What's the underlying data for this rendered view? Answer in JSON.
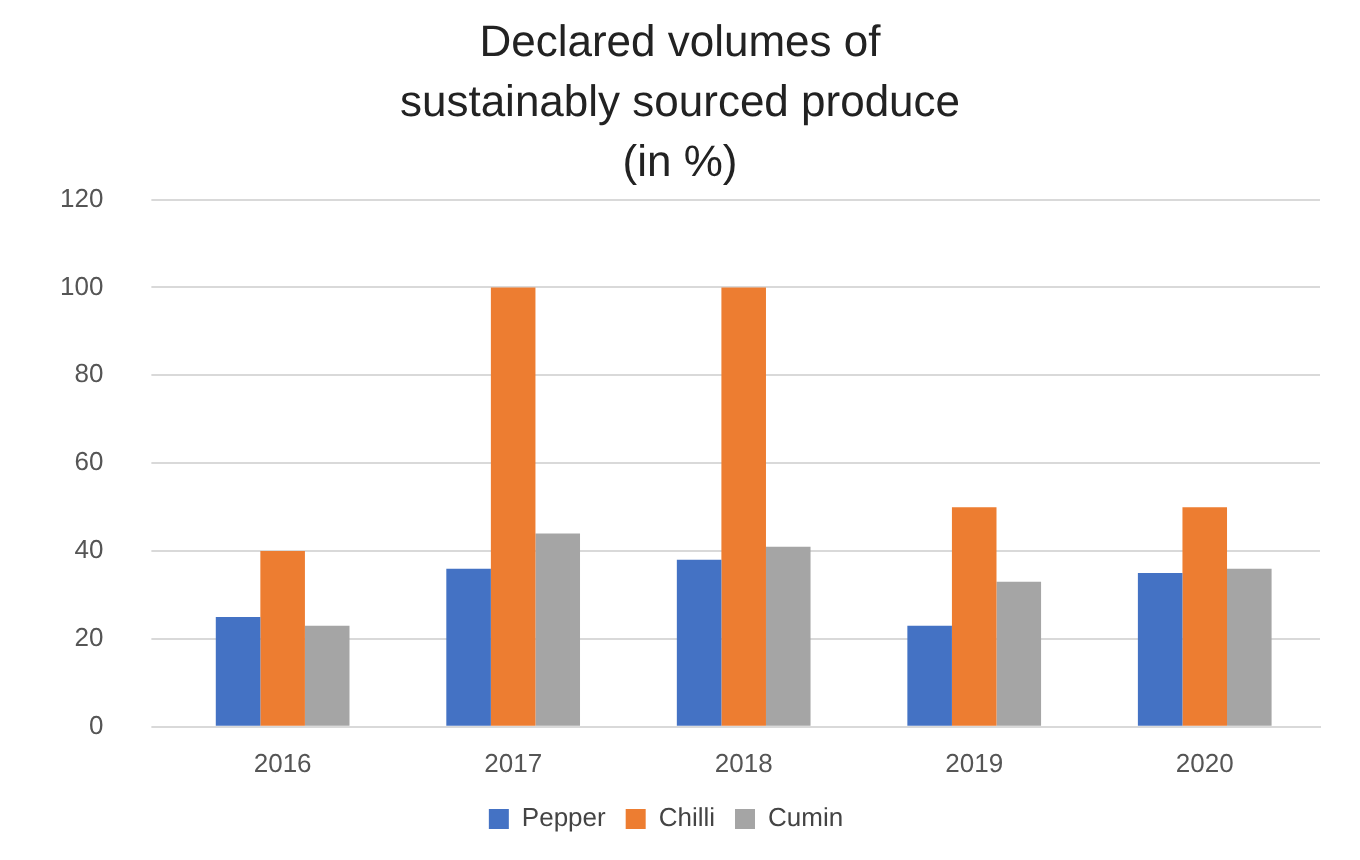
{
  "chart_data": {
    "type": "bar",
    "title": "Declared volumes of sustainably sourced produce (in %)",
    "categories": [
      "2016",
      "2017",
      "2018",
      "2019",
      "2020"
    ],
    "series": [
      {
        "name": "Pepper",
        "color": "#4472c4",
        "values": [
          25,
          36,
          38,
          23,
          35
        ]
      },
      {
        "name": "Chilli",
        "color": "#ed7d31",
        "values": [
          40,
          100,
          100,
          50,
          50
        ]
      },
      {
        "name": "Cumin",
        "color": "#a5a5a5",
        "values": [
          23,
          44,
          41,
          33,
          36
        ]
      }
    ],
    "ylim": [
      0,
      120
    ],
    "yticks": [
      0,
      20,
      40,
      60,
      80,
      100,
      120
    ],
    "grid": "y",
    "legend": "bottom"
  }
}
